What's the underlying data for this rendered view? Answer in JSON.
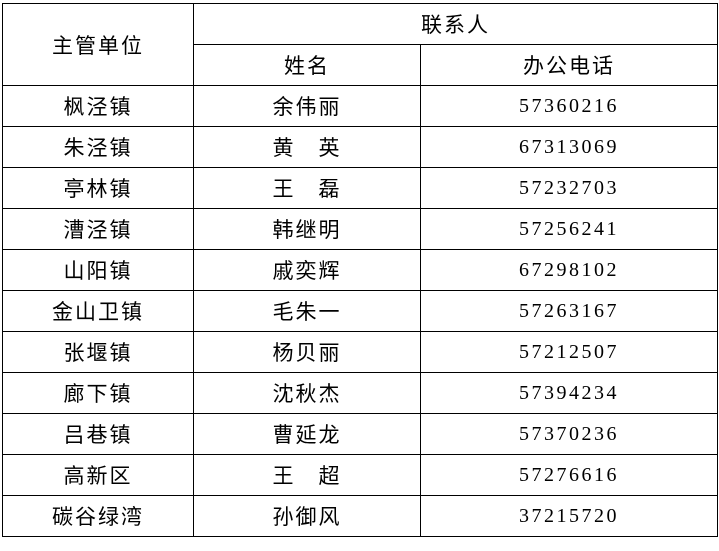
{
  "table": {
    "header": {
      "unit": "主管单位",
      "contact": "联系人",
      "name": "姓名",
      "phone": "办公电话"
    },
    "rows": [
      {
        "unit": "枫泾镇",
        "name": "余伟丽",
        "phone": "57360216"
      },
      {
        "unit": "朱泾镇",
        "name": "黄　英",
        "phone": "67313069"
      },
      {
        "unit": "亭林镇",
        "name": "王　磊",
        "phone": "57232703"
      },
      {
        "unit": "漕泾镇",
        "name": "韩继明",
        "phone": "57256241"
      },
      {
        "unit": "山阳镇",
        "name": "戚奕辉",
        "phone": "67298102"
      },
      {
        "unit": "金山卫镇",
        "name": "毛朱一",
        "phone": "57263167"
      },
      {
        "unit": "张堰镇",
        "name": "杨贝丽",
        "phone": "57212507"
      },
      {
        "unit": "廊下镇",
        "name": "沈秋杰",
        "phone": "57394234"
      },
      {
        "unit": "吕巷镇",
        "name": "曹延龙",
        "phone": "57370236"
      },
      {
        "unit": "高新区",
        "name": "王　超",
        "phone": "57276616"
      },
      {
        "unit": "碳谷绿湾",
        "name": "孙御风",
        "phone": "37215720"
      }
    ]
  }
}
